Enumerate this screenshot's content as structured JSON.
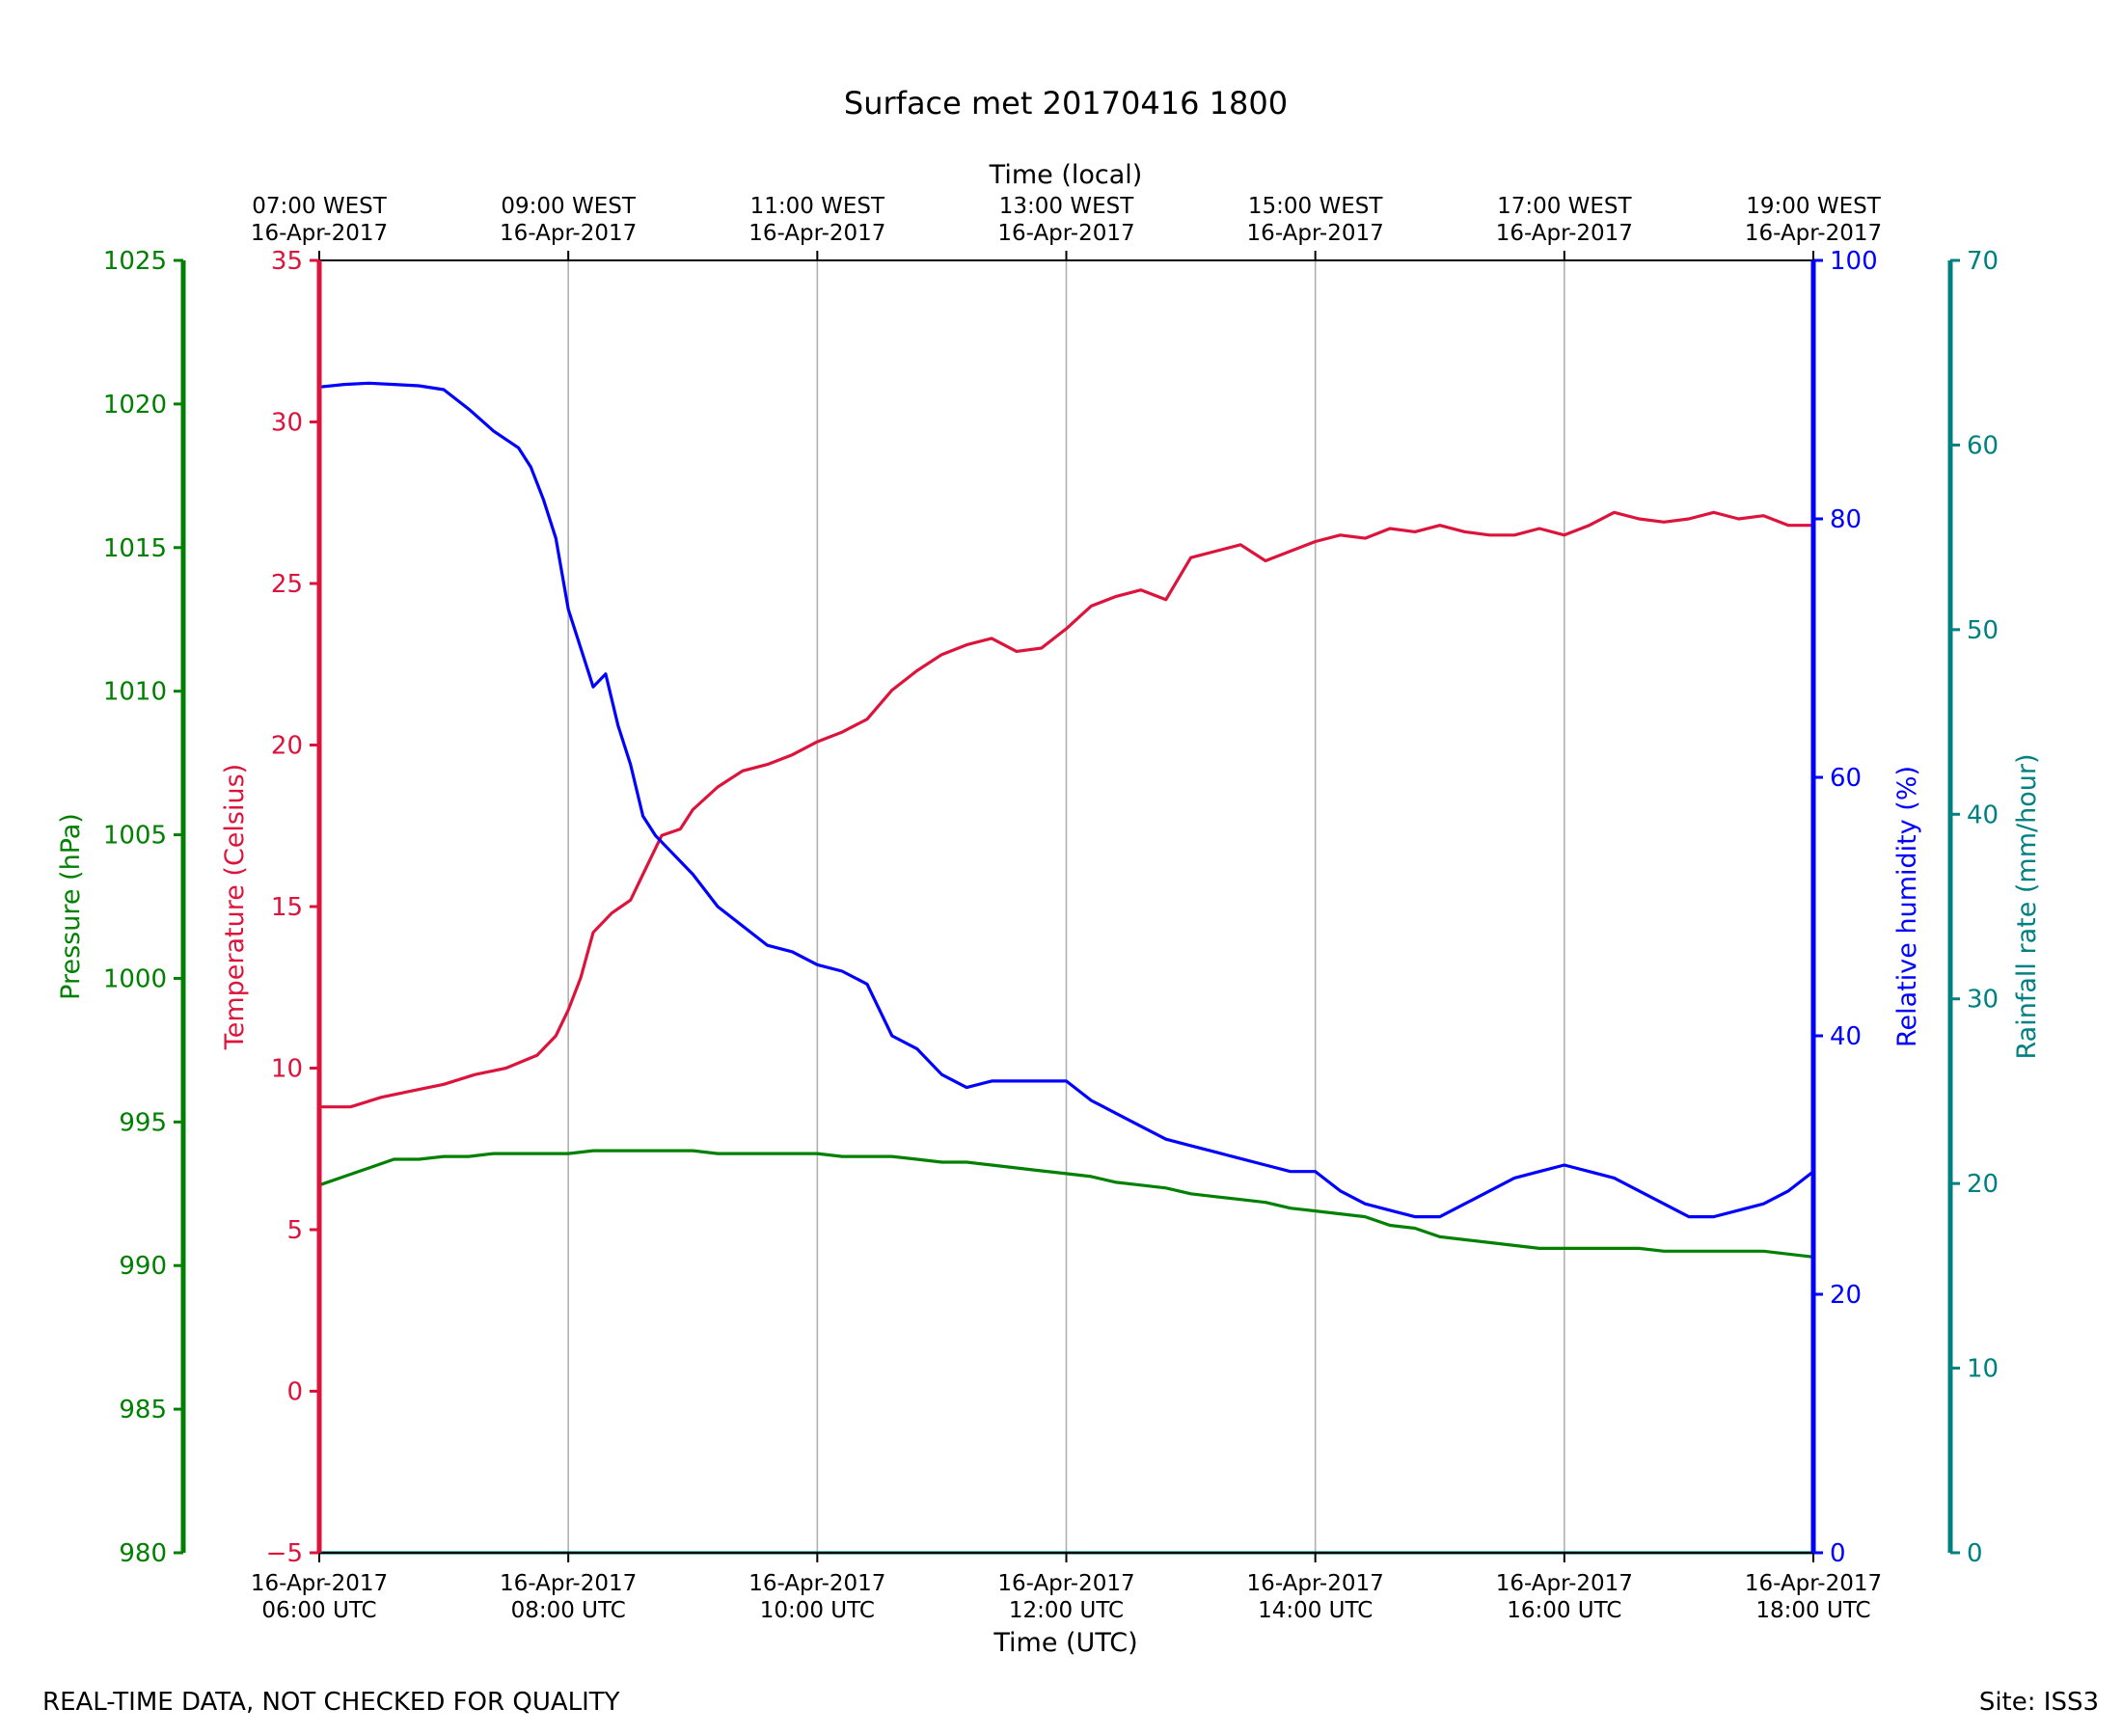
{
  "chart_data": {
    "type": "line",
    "title": "Surface met 20170416 1800",
    "top_axis": {
      "label": "Time (local)",
      "ticks": [
        [
          "07:00 WEST",
          "16-Apr-2017"
        ],
        [
          "09:00 WEST",
          "16-Apr-2017"
        ],
        [
          "11:00 WEST",
          "16-Apr-2017"
        ],
        [
          "13:00 WEST",
          "16-Apr-2017"
        ],
        [
          "15:00 WEST",
          "16-Apr-2017"
        ],
        [
          "17:00 WEST",
          "16-Apr-2017"
        ],
        [
          "19:00 WEST",
          "16-Apr-2017"
        ]
      ]
    },
    "x_axis": {
      "label": "Time (UTC)",
      "unit": "hour UTC",
      "range": [
        6,
        18
      ],
      "ticks": [
        6,
        8,
        10,
        12,
        14,
        16,
        18
      ],
      "tick_labels": [
        [
          "16-Apr-2017",
          "06:00 UTC"
        ],
        [
          "16-Apr-2017",
          "08:00 UTC"
        ],
        [
          "16-Apr-2017",
          "10:00 UTC"
        ],
        [
          "16-Apr-2017",
          "12:00 UTC"
        ],
        [
          "16-Apr-2017",
          "14:00 UTC"
        ],
        [
          "16-Apr-2017",
          "16:00 UTC"
        ],
        [
          "16-Apr-2017",
          "18:00 UTC"
        ]
      ],
      "grid": true
    },
    "y_axes": {
      "pressure": {
        "label": "Pressure (hPa)",
        "range": [
          980,
          1025
        ],
        "ticks": [
          980,
          985,
          990,
          995,
          1000,
          1005,
          1010,
          1015,
          1020,
          1025
        ],
        "color": "#008000",
        "side": "left-outer"
      },
      "temperature": {
        "label": "Temperature (Celsius)",
        "range": [
          -5,
          35
        ],
        "ticks": [
          -5,
          0,
          5,
          10,
          15,
          20,
          25,
          30,
          35
        ],
        "color": "#dc143c",
        "side": "left"
      },
      "humidity": {
        "label": "Relative humidity (%)",
        "range": [
          0,
          100
        ],
        "ticks": [
          0,
          20,
          40,
          60,
          80,
          100
        ],
        "color": "#0000ff",
        "side": "right"
      },
      "rainfall": {
        "label": "Rainfall rate (mm/hour)",
        "range": [
          0,
          70
        ],
        "ticks": [
          0,
          10,
          20,
          30,
          40,
          50,
          60,
          70
        ],
        "color": "#008080",
        "side": "right-outer"
      }
    },
    "series": [
      {
        "axis": "temperature",
        "color": "#dc143c",
        "x": [
          6.0,
          6.25,
          6.5,
          6.75,
          7.0,
          7.25,
          7.5,
          7.75,
          7.9,
          8.0,
          8.1,
          8.2,
          8.35,
          8.5,
          8.6,
          8.75,
          8.9,
          9.0,
          9.2,
          9.4,
          9.6,
          9.8,
          10.0,
          10.2,
          10.4,
          10.6,
          10.8,
          11.0,
          11.2,
          11.4,
          11.6,
          11.8,
          12.0,
          12.2,
          12.4,
          12.6,
          12.8,
          13.0,
          13.2,
          13.4,
          13.6,
          13.8,
          14.0,
          14.2,
          14.4,
          14.6,
          14.8,
          15.0,
          15.2,
          15.4,
          15.6,
          15.8,
          16.0,
          16.2,
          16.4,
          16.6,
          16.8,
          17.0,
          17.2,
          17.4,
          17.6,
          17.8,
          18.0
        ],
        "y": [
          8.8,
          8.8,
          9.1,
          9.3,
          9.5,
          9.8,
          10.0,
          10.4,
          11.0,
          11.8,
          12.8,
          14.2,
          14.8,
          15.2,
          16.0,
          17.2,
          17.4,
          18.0,
          18.7,
          19.2,
          19.4,
          19.7,
          20.1,
          20.4,
          20.8,
          21.7,
          22.3,
          22.8,
          23.1,
          23.3,
          22.9,
          23.0,
          23.6,
          24.3,
          24.6,
          24.8,
          24.5,
          25.8,
          26.0,
          26.2,
          25.7,
          26.0,
          26.3,
          26.5,
          26.4,
          26.7,
          26.6,
          26.8,
          26.6,
          26.5,
          26.5,
          26.7,
          26.5,
          26.8,
          27.2,
          27.0,
          26.9,
          27.0,
          27.2,
          27.0,
          27.1,
          26.8,
          26.8
        ]
      },
      {
        "axis": "humidity",
        "color": "#0000ff",
        "x": [
          6.0,
          6.2,
          6.4,
          6.6,
          6.8,
          7.0,
          7.2,
          7.4,
          7.6,
          7.7,
          7.8,
          7.9,
          8.0,
          8.1,
          8.2,
          8.3,
          8.4,
          8.5,
          8.6,
          8.7,
          8.8,
          9.0,
          9.2,
          9.4,
          9.6,
          9.8,
          10.0,
          10.2,
          10.4,
          10.6,
          10.8,
          11.0,
          11.2,
          11.4,
          11.6,
          11.8,
          12.0,
          12.2,
          12.4,
          12.6,
          12.8,
          13.0,
          13.2,
          13.4,
          13.6,
          13.8,
          14.0,
          14.2,
          14.4,
          14.6,
          14.8,
          15.0,
          15.2,
          15.4,
          15.6,
          15.8,
          16.0,
          16.2,
          16.4,
          16.6,
          16.8,
          17.0,
          17.2,
          17.4,
          17.6,
          17.8,
          18.0
        ],
        "y": [
          90.2,
          90.4,
          90.5,
          90.4,
          90.3,
          90.0,
          88.5,
          86.8,
          85.5,
          84.0,
          81.5,
          78.5,
          73.0,
          70.0,
          67.0,
          68.0,
          64.0,
          61.0,
          57.0,
          55.5,
          54.5,
          52.5,
          50.0,
          48.5,
          47.0,
          46.5,
          45.5,
          45.0,
          44.0,
          40.0,
          39.0,
          37.0,
          36.0,
          36.5,
          36.5,
          36.5,
          36.5,
          35.0,
          34.0,
          33.0,
          32.0,
          31.5,
          31.0,
          30.5,
          30.0,
          29.5,
          29.5,
          28.0,
          27.0,
          26.5,
          26.0,
          26.0,
          27.0,
          28.0,
          29.0,
          29.5,
          30.0,
          29.5,
          29.0,
          28.0,
          27.0,
          26.0,
          26.0,
          26.5,
          27.0,
          28.0,
          29.5
        ]
      },
      {
        "axis": "pressure",
        "color": "#008000",
        "x": [
          6.0,
          6.2,
          6.4,
          6.6,
          6.8,
          7.0,
          7.2,
          7.4,
          7.6,
          7.8,
          8.0,
          8.2,
          8.4,
          8.6,
          8.8,
          9.0,
          9.2,
          9.4,
          9.6,
          9.8,
          10.0,
          10.2,
          10.4,
          10.6,
          10.8,
          11.0,
          11.2,
          11.4,
          11.6,
          11.8,
          12.0,
          12.2,
          12.4,
          12.6,
          12.8,
          13.0,
          13.2,
          13.4,
          13.6,
          13.8,
          14.0,
          14.2,
          14.4,
          14.6,
          14.8,
          15.0,
          15.2,
          15.4,
          15.6,
          15.8,
          16.0,
          16.2,
          16.4,
          16.6,
          16.8,
          17.0,
          17.2,
          17.4,
          17.6,
          17.8,
          18.0
        ],
        "y": [
          992.8,
          993.1,
          993.4,
          993.7,
          993.7,
          993.8,
          993.8,
          993.9,
          993.9,
          993.9,
          993.9,
          994.0,
          994.0,
          994.0,
          994.0,
          994.0,
          993.9,
          993.9,
          993.9,
          993.9,
          993.9,
          993.8,
          993.8,
          993.8,
          993.7,
          993.6,
          993.6,
          993.5,
          993.4,
          993.3,
          993.2,
          993.1,
          992.9,
          992.8,
          992.7,
          992.5,
          992.4,
          992.3,
          992.2,
          992.0,
          991.9,
          991.8,
          991.7,
          991.4,
          991.3,
          991.0,
          990.9,
          990.8,
          990.7,
          990.6,
          990.6,
          990.6,
          990.6,
          990.6,
          990.5,
          990.5,
          990.5,
          990.5,
          990.5,
          990.4,
          990.3
        ]
      },
      {
        "axis": "rainfall",
        "color": "#008080",
        "x": [
          6.0,
          18.0
        ],
        "y": [
          0.0,
          0.0
        ]
      }
    ]
  },
  "footer": {
    "left": "REAL-TIME DATA, NOT CHECKED FOR QUALITY",
    "right": "Site: ISS3"
  }
}
